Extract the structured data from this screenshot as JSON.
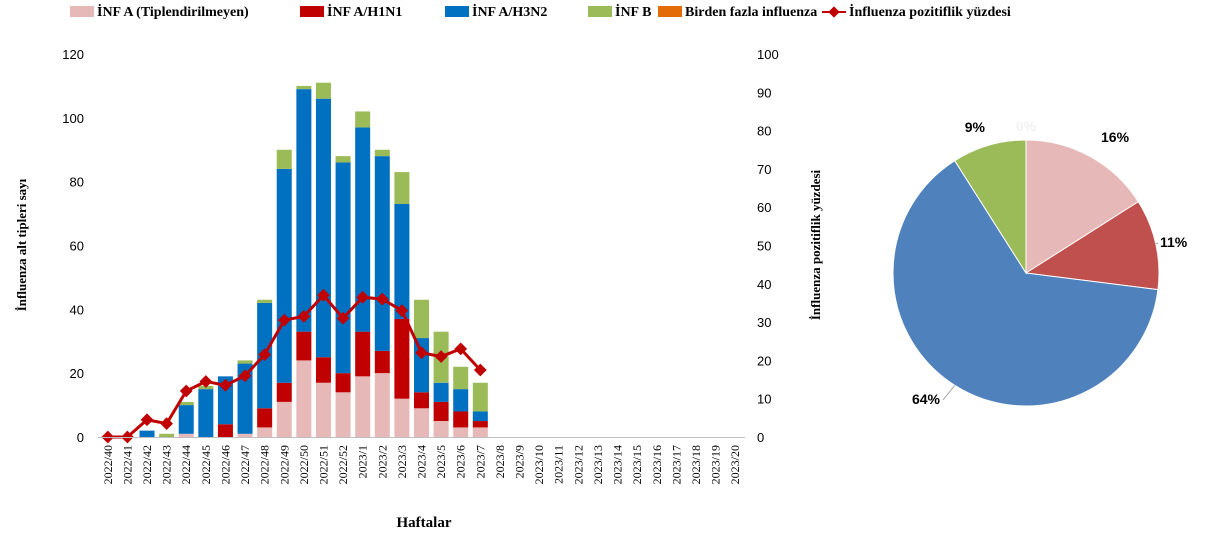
{
  "chart_data": [
    {
      "type": "bar",
      "stacked": true,
      "xlabel": "Haftalar",
      "ylabel": "İnfluenza alt tipleri sayı",
      "y2label": "İnfluenza pozitiflik yüzdesi",
      "ylim": [
        0,
        120
      ],
      "y2lim": [
        0,
        100
      ],
      "yticks": [
        "0",
        "20",
        "40",
        "60",
        "80",
        "100",
        "120"
      ],
      "y2ticks": [
        "0",
        "10",
        "20",
        "30",
        "40",
        "50",
        "60",
        "70",
        "80",
        "90",
        "100"
      ],
      "grid": false,
      "legend_placement": "top",
      "categories": [
        "2022/40",
        "2022/41",
        "2022/42",
        "2022/43",
        "2022/44",
        "2022/45",
        "2022/46",
        "2022/47",
        "2022/48",
        "2022/49",
        "2022/50",
        "2022/51",
        "2022/52",
        "2023/1",
        "2023/2",
        "2023/3",
        "2023/4",
        "2023/5",
        "2023/6",
        "2023/7",
        "2023/8",
        "2023/9",
        "2023/10",
        "2023/11",
        "2023/12",
        "2023/13",
        "2023/14",
        "2023/15",
        "2023/16",
        "2023/17",
        "2023/18",
        "2023/19",
        "2023/20"
      ],
      "series": [
        {
          "name": "İNF A (Tiplendirilmeyen)",
          "color": "#E6B9B8",
          "values": [
            0,
            0,
            0,
            0,
            1,
            0,
            0,
            1,
            3,
            11,
            24,
            17,
            14,
            19,
            20,
            12,
            9,
            5,
            3,
            3,
            0,
            0,
            0,
            0,
            0,
            0,
            0,
            0,
            0,
            0,
            0,
            0,
            0
          ]
        },
        {
          "name": "İNF A/H1N1",
          "color": "#C00000",
          "values": [
            0,
            0,
            0,
            0,
            0,
            0,
            4,
            0,
            6,
            6,
            9,
            8,
            6,
            14,
            7,
            25,
            5,
            6,
            5,
            2,
            0,
            0,
            0,
            0,
            0,
            0,
            0,
            0,
            0,
            0,
            0,
            0,
            0
          ]
        },
        {
          "name": "İNF A/H3N2",
          "color": "#0070C0",
          "values": [
            0,
            0,
            2,
            0,
            9,
            15,
            15,
            22,
            33,
            67,
            76,
            81,
            66,
            64,
            61,
            36,
            17,
            6,
            7,
            3,
            0,
            0,
            0,
            0,
            0,
            0,
            0,
            0,
            0,
            0,
            0,
            0,
            0
          ]
        },
        {
          "name": "İNF B",
          "color": "#9BBB59",
          "values": [
            0,
            0,
            0,
            1,
            1,
            1,
            0,
            1,
            1,
            6,
            1,
            5,
            2,
            5,
            2,
            10,
            12,
            16,
            7,
            9,
            0,
            0,
            0,
            0,
            0,
            0,
            0,
            0,
            0,
            0,
            0,
            0,
            0
          ]
        },
        {
          "name": "Birden fazla influenza",
          "color": "#E36C09",
          "values": [
            0,
            0,
            0,
            0,
            0,
            0,
            0,
            0,
            0,
            0,
            0,
            0,
            0,
            0,
            0,
            0,
            0,
            0,
            0,
            0,
            0,
            0,
            0,
            0,
            0,
            0,
            0,
            0,
            0,
            0,
            0,
            0,
            0
          ]
        }
      ],
      "line_series": {
        "name": "İnfluenza pozitiflik yüzdesi",
        "color": "#C00000",
        "axis": "right",
        "values": [
          0,
          0,
          4.5,
          3.5,
          12,
          14.5,
          13.5,
          16,
          21.5,
          30.5,
          31.5,
          37,
          31,
          36.5,
          36,
          33,
          22,
          21,
          23,
          17.5
        ]
      }
    },
    {
      "type": "pie",
      "slices": [
        {
          "label": "16%",
          "value": 16,
          "color": "#E6B9B8"
        },
        {
          "label": "11%",
          "value": 11,
          "color": "#C0504D"
        },
        {
          "label": "64%",
          "value": 64,
          "color": "#4F81BD"
        },
        {
          "label": "9%",
          "value": 9,
          "color": "#9BBB59"
        },
        {
          "label": "0%",
          "value": 0,
          "color": "#F79646"
        }
      ]
    }
  ]
}
